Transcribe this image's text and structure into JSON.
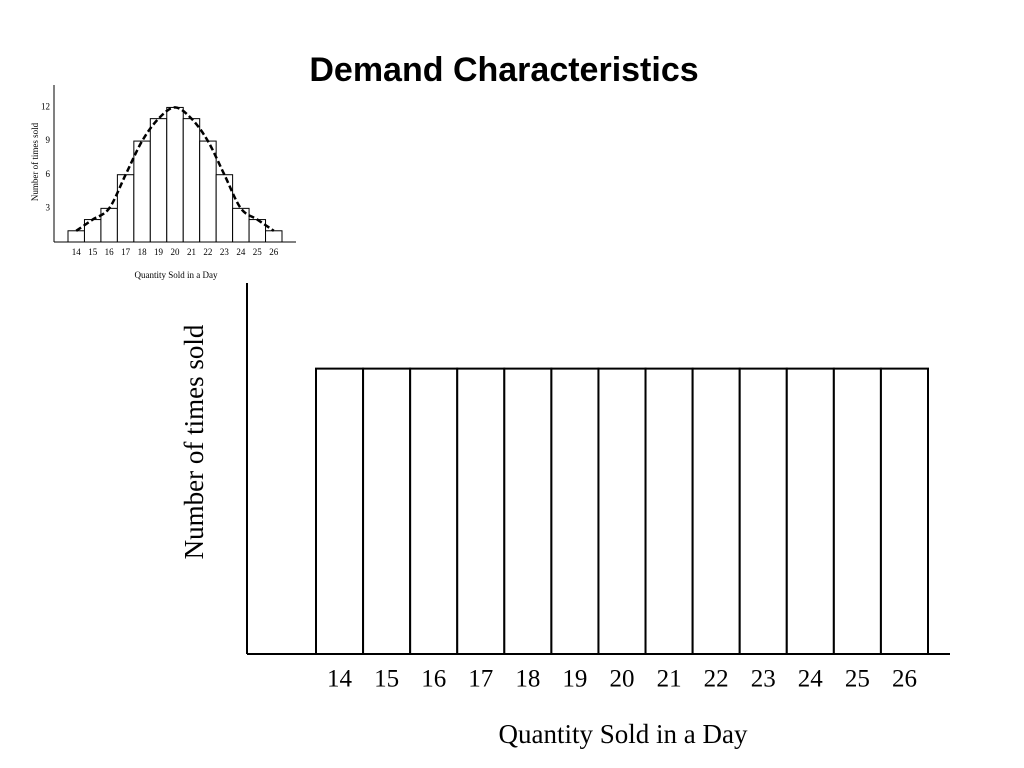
{
  "title": "Demand Characteristics",
  "chart_data": [
    {
      "type": "bar",
      "y_label": "Number of times sold",
      "x_label": "Quantity Sold in a Day",
      "categories": [
        "14",
        "15",
        "16",
        "17",
        "18",
        "19",
        "20",
        "21",
        "22",
        "23",
        "24",
        "25",
        "26"
      ],
      "values": [
        1,
        2,
        3,
        6,
        9,
        11,
        12,
        11,
        9,
        6,
        3,
        2,
        1
      ],
      "ylim": [
        0,
        14
      ],
      "yticks": [
        3,
        6,
        9,
        12
      ],
      "color": "#ffffff",
      "curve": true
    },
    {
      "type": "bar",
      "y_label": "Number of times sold",
      "x_label": "Quantity Sold in a Day",
      "categories": [
        "14",
        "15",
        "16",
        "17",
        "18",
        "19",
        "20",
        "21",
        "22",
        "23",
        "24",
        "25",
        "26"
      ],
      "values": [
        10,
        10,
        10,
        10,
        10,
        10,
        10,
        10,
        10,
        10,
        10,
        10,
        10
      ],
      "ylim": [
        0,
        13
      ],
      "yticks": [],
      "color": "#ffffff",
      "curve": false
    }
  ]
}
